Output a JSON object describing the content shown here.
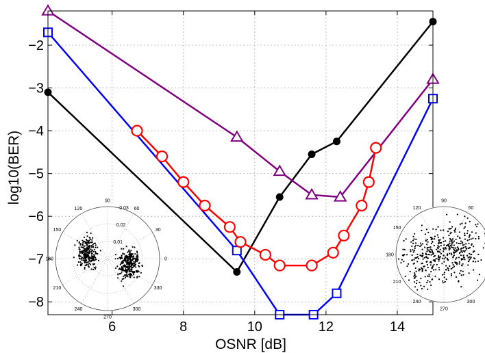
{
  "chart_data": {
    "type": "line",
    "title": "",
    "xlabel": "OSNR [dB]",
    "ylabel": "log10(BER)",
    "xlim": [
      4.2,
      15.0
    ],
    "ylim": [
      -8.3,
      -1.2
    ],
    "xticks": [
      6,
      8,
      10,
      12,
      14
    ],
    "yticks": [
      -2,
      -3,
      -4,
      -5,
      -6,
      -7,
      -8
    ],
    "xtick_labels": [
      "6",
      "8",
      "10",
      "12",
      "14"
    ],
    "ytick_labels": [
      "−2",
      "−3",
      "−4",
      "−5",
      "−6",
      "−7",
      "−8"
    ],
    "grid": true,
    "legend": "none",
    "series": [
      {
        "color": "#000000",
        "marker": "circle-filled",
        "x": [
          4.2,
          9.5,
          10.7,
          11.6,
          12.3,
          15.0
        ],
        "y": [
          -3.1,
          -7.3,
          -5.55,
          -4.55,
          -4.25,
          -1.45
        ]
      },
      {
        "color": "#800080",
        "marker": "triangle",
        "x": [
          4.2,
          9.5,
          10.7,
          11.6,
          12.4,
          15.0
        ],
        "y": [
          -1.2,
          -4.15,
          -4.95,
          -5.5,
          -5.55,
          -2.8
        ]
      },
      {
        "color": "#0000ff",
        "marker": "square",
        "x": [
          4.2,
          9.5,
          10.7,
          11.65,
          12.3,
          15.0
        ],
        "y": [
          -1.7,
          -6.8,
          -8.3,
          -8.3,
          -7.8,
          -3.25
        ]
      },
      {
        "color": "#ff0000",
        "marker": "circle-open",
        "x": [
          6.7,
          7.4,
          8.0,
          8.6,
          9.3,
          9.6,
          10.3,
          10.7,
          11.6,
          12.2,
          12.5,
          13.0,
          13.2,
          13.4
        ],
        "y": [
          -4.0,
          -4.6,
          -5.2,
          -5.75,
          -6.25,
          -6.6,
          -6.9,
          -7.15,
          -7.15,
          -6.85,
          -6.45,
          -5.75,
          -5.2,
          -4.4
        ]
      }
    ],
    "insets": [
      {
        "type": "polar-scatter",
        "angle_labels": [
          "90",
          "60",
          "30",
          "0",
          "330",
          "300",
          "270",
          "240",
          "210",
          "180",
          "150",
          "120"
        ],
        "radial_labels": [
          "0.01",
          "0.02",
          "0.03"
        ]
      },
      {
        "type": "polar-scatter",
        "angle_labels": [
          "90",
          "60",
          "30",
          "330",
          "300",
          "270",
          "240",
          "210",
          "180",
          "150",
          "120"
        ],
        "radial_labels": [
          "0.04"
        ]
      }
    ]
  }
}
